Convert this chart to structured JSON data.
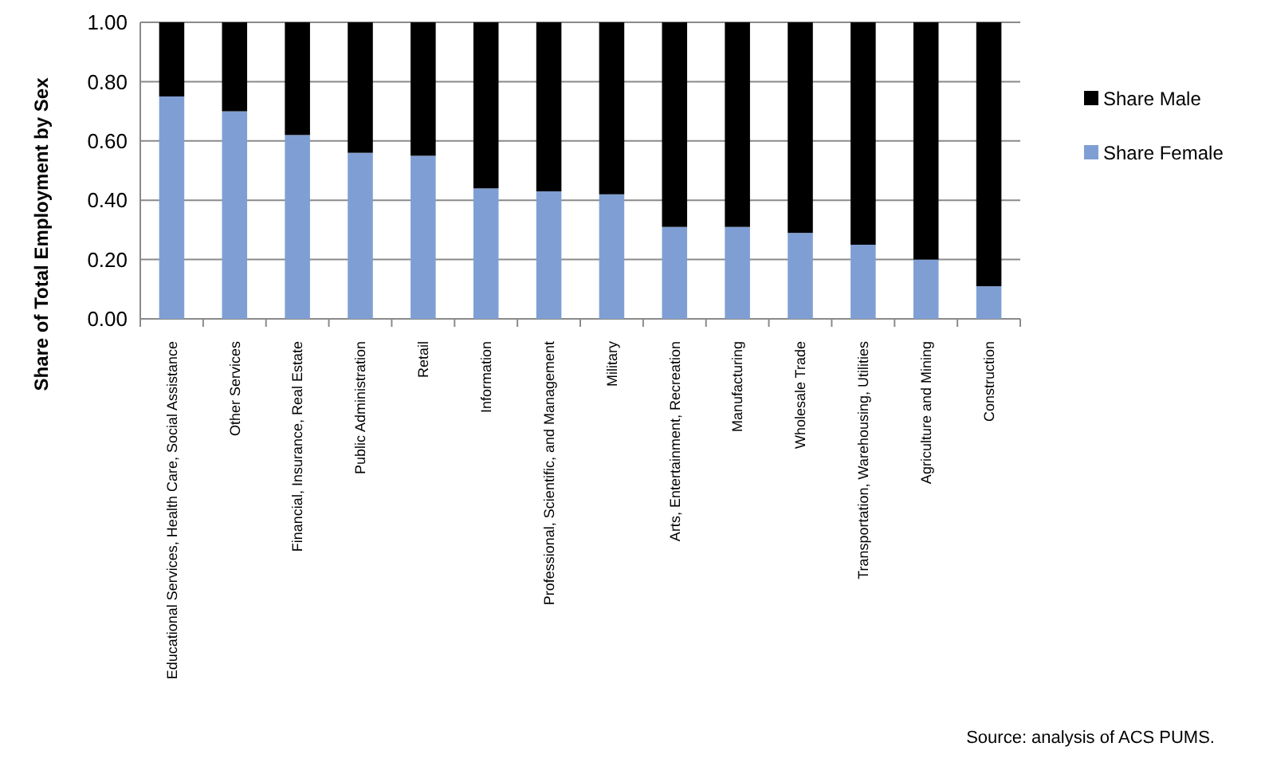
{
  "chart_data": {
    "type": "bar",
    "stacked": true,
    "ylabel": "Share of Total Employment by Sex",
    "categories": [
      "Educational Services, Health Care, Social Assistance",
      "Other Services",
      "Financial, Insurance, Real Estate",
      "Public Administration",
      "Retail",
      "Information",
      "Professional, Scientific, and Management",
      "Military",
      "Arts, Entertainment, Recreation",
      "Manufacturing",
      "Wholesale Trade",
      "Transportation, Warehousing, Utilities",
      "Agriculture and Mining",
      "Construction"
    ],
    "series": [
      {
        "name": "Share Female",
        "color": "#7f9fd4",
        "values": [
          0.75,
          0.7,
          0.62,
          0.56,
          0.55,
          0.44,
          0.43,
          0.42,
          0.31,
          0.31,
          0.29,
          0.25,
          0.2,
          0.11
        ]
      },
      {
        "name": "Share Male",
        "color": "#000000",
        "values": [
          0.25,
          0.3,
          0.38,
          0.44,
          0.45,
          0.56,
          0.57,
          0.58,
          0.69,
          0.69,
          0.71,
          0.75,
          0.8,
          0.89
        ]
      }
    ],
    "ylim": [
      0,
      1
    ],
    "yticks": [
      {
        "value": 0,
        "label": "0.00"
      },
      {
        "value": 0.2,
        "label": "0.20"
      },
      {
        "value": 0.4,
        "label": "0.40"
      },
      {
        "value": 0.6,
        "label": "0.60"
      },
      {
        "value": 0.8,
        "label": "0.80"
      },
      {
        "value": 1,
        "label": "1.00"
      }
    ],
    "grid": "y",
    "legend": "right",
    "annotations": [
      "Source: analysis of ACS PUMS."
    ]
  }
}
